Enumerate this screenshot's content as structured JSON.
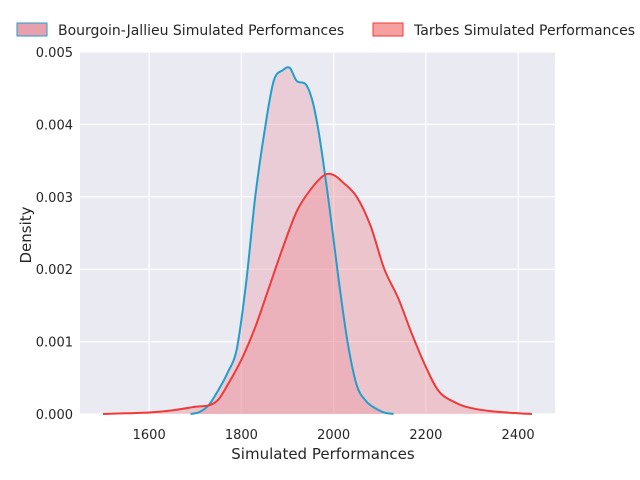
{
  "chart_data": {
    "type": "area",
    "title": "",
    "xlabel": "Simulated Performances",
    "ylabel": "Density",
    "xlim": [
      1450,
      2480
    ],
    "ylim": [
      0,
      0.005
    ],
    "x_ticks": [
      1600,
      1800,
      2000,
      2200,
      2400
    ],
    "x_tick_labels": [
      "1600",
      "1800",
      "2000",
      "2200",
      "2400"
    ],
    "y_ticks": [
      0,
      0.001,
      0.002,
      0.003,
      0.004,
      0.005
    ],
    "y_tick_labels": [
      "0.000",
      "0.001",
      "0.002",
      "0.003",
      "0.004",
      "0.005"
    ],
    "grid": true,
    "legend_position": "top",
    "legend_columns": 2,
    "series": [
      {
        "name": "Bourgoin-Jallieu Simulated Performances",
        "line_color": "#1f9fcc",
        "fill_color": "#e8a0ac",
        "points": [
          [
            1690,
            0
          ],
          [
            1710,
            3e-05
          ],
          [
            1730,
            0.00013
          ],
          [
            1750,
            0.00033
          ],
          [
            1770,
            0.00057
          ],
          [
            1790,
            0.0009
          ],
          [
            1810,
            0.0018
          ],
          [
            1830,
            0.003
          ],
          [
            1850,
            0.0039
          ],
          [
            1870,
            0.0046
          ],
          [
            1890,
            0.00475
          ],
          [
            1905,
            0.00478
          ],
          [
            1920,
            0.0046
          ],
          [
            1940,
            0.00455
          ],
          [
            1955,
            0.0043
          ],
          [
            1970,
            0.0038
          ],
          [
            1990,
            0.0029
          ],
          [
            2010,
            0.0019
          ],
          [
            2030,
            0.001
          ],
          [
            2050,
            0.0004
          ],
          [
            2070,
            0.00018
          ],
          [
            2090,
            8e-05
          ],
          [
            2110,
            2e-05
          ],
          [
            2130,
            0
          ]
        ]
      },
      {
        "name": "Tarbes Simulated Performances",
        "line_color": "#f03a3a",
        "fill_color": "#f08c94",
        "points": [
          [
            1500,
            0
          ],
          [
            1550,
            1e-05
          ],
          [
            1600,
            2e-05
          ],
          [
            1650,
            5e-05
          ],
          [
            1700,
            0.0001
          ],
          [
            1730,
            0.00012
          ],
          [
            1750,
            0.0002
          ],
          [
            1770,
            0.0004
          ],
          [
            1800,
            0.00075
          ],
          [
            1830,
            0.0012
          ],
          [
            1860,
            0.00175
          ],
          [
            1890,
            0.0023
          ],
          [
            1920,
            0.0028
          ],
          [
            1950,
            0.0031
          ],
          [
            1980,
            0.0033
          ],
          [
            2000,
            0.0033
          ],
          [
            2020,
            0.0032
          ],
          [
            2050,
            0.003
          ],
          [
            2080,
            0.0026
          ],
          [
            2110,
            0.002
          ],
          [
            2140,
            0.0016
          ],
          [
            2170,
            0.0011
          ],
          [
            2200,
            0.00065
          ],
          [
            2230,
            0.0003
          ],
          [
            2270,
            0.00014
          ],
          [
            2300,
            8e-05
          ],
          [
            2340,
            4e-05
          ],
          [
            2400,
            1e-05
          ],
          [
            2430,
            0
          ]
        ]
      }
    ]
  }
}
